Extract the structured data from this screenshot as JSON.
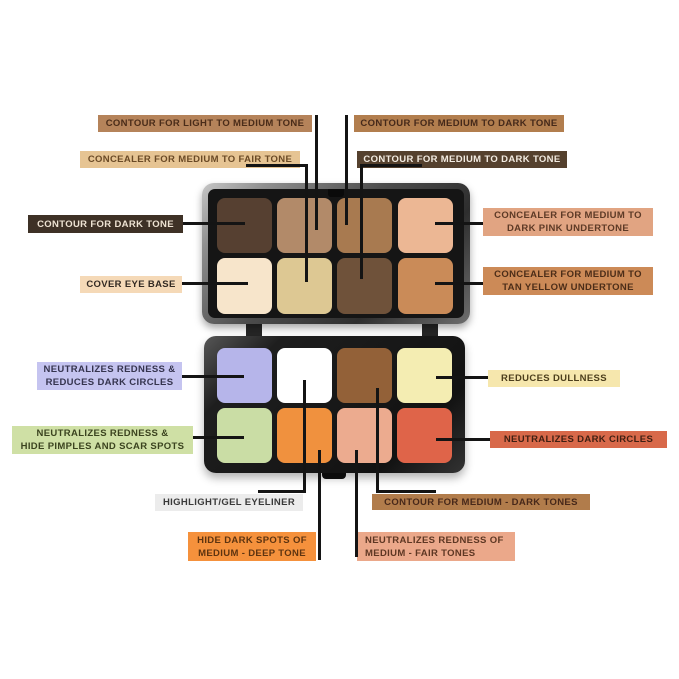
{
  "labels": {
    "contour_light_medium": {
      "text": "CONTOUR FOR LIGHT TO MEDIUM TONE",
      "bg": "#b5835a",
      "fg": "#4a2c19"
    },
    "contour_medium_dark_1": {
      "text": "CONTOUR FOR MEDIUM TO DARK TONE",
      "bg": "#b27e4e",
      "fg": "#45291a"
    },
    "concealer_medium_fair": {
      "text": "CONCEALER FOR MEDIUM TO FAIR TONE",
      "bg": "#e6c493",
      "fg": "#6a4a26"
    },
    "contour_medium_dark_2": {
      "text": "CONTOUR FOR MEDIUM TO DARK TONE",
      "bg": "#55412e",
      "fg": "#f3ece2"
    },
    "contour_dark": {
      "text": "CONTOUR FOR DARK TONE",
      "bg": "#3e3126",
      "fg": "#eee3d3"
    },
    "cover_eye_base": {
      "text": "COVER EYE BASE",
      "bg": "#f5d9b7",
      "fg": "#332a23"
    },
    "concealer_dark_pink": {
      "lines": [
        "CONCEALER FOR MEDIUM TO",
        "DARK PINK UNDERTONE"
      ],
      "bg": "#e1a482",
      "fg": "#5d3a26"
    },
    "concealer_tan_yellow": {
      "lines": [
        "CONCEALER FOR MEDIUM TO",
        "TAN YELLOW UNDERTONE"
      ],
      "bg": "#cc8a57",
      "fg": "#4c2d18"
    },
    "neutralizes_reduces_dark_circles": {
      "lines": [
        "NEUTRALIZES REDNESS &",
        "REDUCES DARK CIRCLES"
      ],
      "bg": "#c5c4f0",
      "fg": "#35344e"
    },
    "neutralizes_pimples_scars": {
      "lines": [
        "NEUTRALIZES REDNESS &",
        "HIDE PIMPLES AND SCAR SPOTS"
      ],
      "bg": "#cfe0a5",
      "fg": "#3b431f"
    },
    "reduces_dullness": {
      "text": "REDUCES DULLNESS",
      "bg": "#f6e7ad",
      "fg": "#4c3e1c"
    },
    "neutralizes_dark_circles": {
      "text": "NEUTRALIZES DARK CIRCLES",
      "bg": "#d8694a",
      "fg": "#3f1f12"
    },
    "highlight_gel_eyeliner": {
      "text": "HIGHLIGHT/GEL EYELINER",
      "bg": "#ececec",
      "fg": "#3a3a3a"
    },
    "contour_medium_dark_tones": {
      "text": "CONTOUR FOR MEDIUM - DARK TONES",
      "bg": "#b17c4b",
      "fg": "#47281a"
    },
    "hide_dark_spots": {
      "lines": [
        "HIDE DARK SPOTS OF",
        "MEDIUM - DEEP TONE"
      ],
      "bg": "#f5913c",
      "fg": "#5e3410"
    },
    "neutralizes_redness_fair": {
      "lines": [
        "NEUTRALIZES REDNESS OF",
        "MEDIUM - FAIR TONES"
      ],
      "bg": "#eba88a",
      "fg": "#5e3723"
    }
  },
  "palette": {
    "top": {
      "pans": [
        {
          "name": "dark-brown",
          "color": "#564031"
        },
        {
          "name": "tan",
          "color": "#b28a69"
        },
        {
          "name": "medium-brown",
          "color": "#a87a50"
        },
        {
          "name": "light-peach",
          "color": "#ecb794"
        },
        {
          "name": "cream",
          "color": "#f7e5cb"
        },
        {
          "name": "khaki",
          "color": "#ddc893"
        },
        {
          "name": "deep-brown",
          "color": "#6f523a"
        },
        {
          "name": "orange-tan",
          "color": "#ca8b58"
        }
      ]
    },
    "bottom": {
      "pans": [
        {
          "name": "lavender",
          "color": "#b6b5ea"
        },
        {
          "name": "white",
          "color": "#ffffff"
        },
        {
          "name": "brown",
          "color": "#936138"
        },
        {
          "name": "pale-yellow",
          "color": "#f4edb2"
        },
        {
          "name": "light-green",
          "color": "#cadda5"
        },
        {
          "name": "orange",
          "color": "#f0913e"
        },
        {
          "name": "salmon",
          "color": "#ecab8f"
        },
        {
          "name": "red-orange",
          "color": "#df6449"
        }
      ]
    }
  }
}
